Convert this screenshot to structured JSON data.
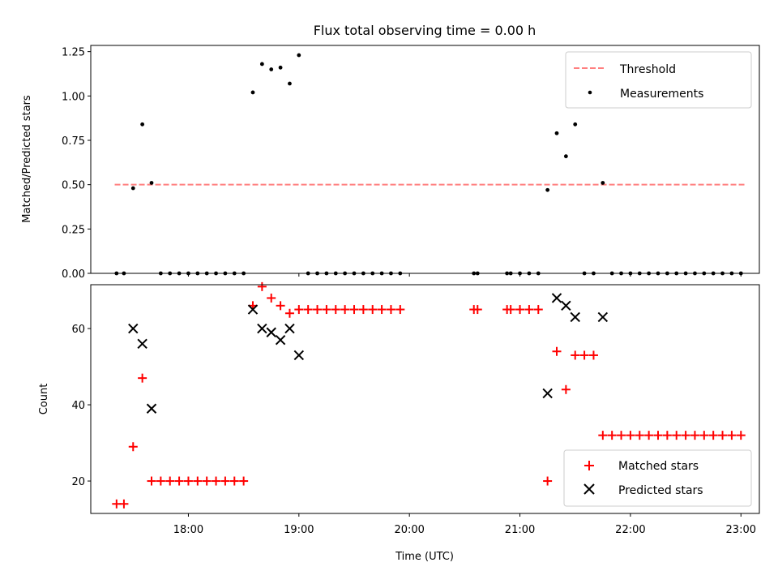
{
  "title": "Flux total observing time = 0.00 h",
  "colors": {
    "threshold": "#ff7f7f",
    "measurements": "#000000",
    "matched": "#ff0000",
    "predicted": "#000000"
  },
  "chart_data": [
    {
      "type": "scatter",
      "panel": "top",
      "ylabel": "Matched/Predicted stars",
      "xlabel": "",
      "ylim": [
        0,
        1.285
      ],
      "xlim": [
        "17:07",
        "23:10"
      ],
      "yticks": [
        "0.00",
        "0.25",
        "0.50",
        "0.75",
        "1.00",
        "1.25"
      ],
      "legend": {
        "position": "top-right",
        "entries": [
          "Threshold",
          "Measurements"
        ]
      },
      "series": [
        {
          "name": "Threshold",
          "style": "dashed-line",
          "x": [
            "17:20",
            "23:02"
          ],
          "y": [
            0.5,
            0.5
          ]
        },
        {
          "name": "Measurements",
          "style": "dot",
          "x": [
            "17:21",
            "17:25",
            "17:30",
            "17:35",
            "17:40",
            "17:45",
            "17:50",
            "17:55",
            "18:00",
            "18:05",
            "18:10",
            "18:15",
            "18:20",
            "18:25",
            "18:30",
            "18:35",
            "18:40",
            "18:45",
            "18:50",
            "18:55",
            "19:00",
            "19:05",
            "19:10",
            "19:15",
            "19:20",
            "19:25",
            "19:30",
            "19:35",
            "19:40",
            "19:45",
            "19:50",
            "19:55",
            "20:35",
            "20:37",
            "20:53",
            "20:55",
            "21:00",
            "21:05",
            "21:10",
            "21:15",
            "21:20",
            "21:25",
            "21:30",
            "21:35",
            "21:40",
            "21:45",
            "21:50",
            "21:55",
            "22:00",
            "22:05",
            "22:10",
            "22:15",
            "22:20",
            "22:25",
            "22:30",
            "22:35",
            "22:40",
            "22:45",
            "22:50",
            "22:55",
            "23:00"
          ],
          "y": [
            0,
            0,
            0.48,
            0.84,
            0.51,
            0,
            0,
            0,
            0,
            0,
            0,
            0,
            0,
            0,
            0,
            1.02,
            1.18,
            1.15,
            1.16,
            1.07,
            1.23,
            0,
            0,
            0,
            0,
            0,
            0,
            0,
            0,
            0,
            0,
            0,
            0,
            0,
            0,
            0,
            0,
            0,
            0,
            0.47,
            0.79,
            0.66,
            0.84,
            0,
            0,
            0.51,
            0,
            0,
            0,
            0,
            0,
            0,
            0,
            0,
            0,
            0,
            0,
            0,
            0,
            0,
            0
          ]
        }
      ]
    },
    {
      "type": "scatter",
      "panel": "bottom",
      "ylabel": "Count",
      "xlabel": "Time (UTC)",
      "ylim": [
        11.5,
        71.5
      ],
      "xlim": [
        "17:07",
        "23:10"
      ],
      "yticks": [
        "20",
        "40",
        "60"
      ],
      "xticks": [
        "18:00",
        "19:00",
        "20:00",
        "21:00",
        "22:00",
        "23:00"
      ],
      "legend": {
        "position": "bottom-right",
        "entries": [
          "Matched stars",
          "Predicted stars"
        ]
      },
      "series": [
        {
          "name": "Matched stars",
          "marker": "plus",
          "x": [
            "17:21",
            "17:25",
            "17:30",
            "17:35",
            "17:40",
            "17:45",
            "17:50",
            "17:55",
            "18:00",
            "18:05",
            "18:10",
            "18:15",
            "18:20",
            "18:25",
            "18:30",
            "18:35",
            "18:40",
            "18:45",
            "18:50",
            "18:55",
            "19:00",
            "19:05",
            "19:10",
            "19:15",
            "19:20",
            "19:25",
            "19:30",
            "19:35",
            "19:40",
            "19:45",
            "19:50",
            "19:55",
            "20:35",
            "20:37",
            "20:53",
            "20:55",
            "21:00",
            "21:05",
            "21:10",
            "21:15",
            "21:20",
            "21:25",
            "21:30",
            "21:35",
            "21:40",
            "21:45",
            "21:50",
            "21:55",
            "22:00",
            "22:05",
            "22:10",
            "22:15",
            "22:20",
            "22:25",
            "22:30",
            "22:35",
            "22:40",
            "22:45",
            "22:50",
            "22:55",
            "23:00"
          ],
          "y": [
            14,
            14,
            29,
            47,
            20,
            20,
            20,
            20,
            20,
            20,
            20,
            20,
            20,
            20,
            20,
            66,
            71,
            68,
            66,
            64,
            65,
            65,
            65,
            65,
            65,
            65,
            65,
            65,
            65,
            65,
            65,
            65,
            65,
            65,
            65,
            65,
            65,
            65,
            65,
            20,
            54,
            44,
            53,
            53,
            53,
            32,
            32,
            32,
            32,
            32,
            32,
            32,
            32,
            32,
            32,
            32,
            32,
            32,
            32,
            32,
            32
          ]
        },
        {
          "name": "Predicted stars",
          "marker": "x",
          "x": [
            "17:30",
            "17:35",
            "17:40",
            "18:35",
            "18:40",
            "18:45",
            "18:50",
            "18:55",
            "19:00",
            "21:15",
            "21:20",
            "21:25",
            "21:30",
            "21:45"
          ],
          "y": [
            60,
            56,
            39,
            65,
            60,
            59,
            57,
            60,
            53,
            43,
            68,
            66,
            63,
            63
          ]
        }
      ]
    }
  ]
}
